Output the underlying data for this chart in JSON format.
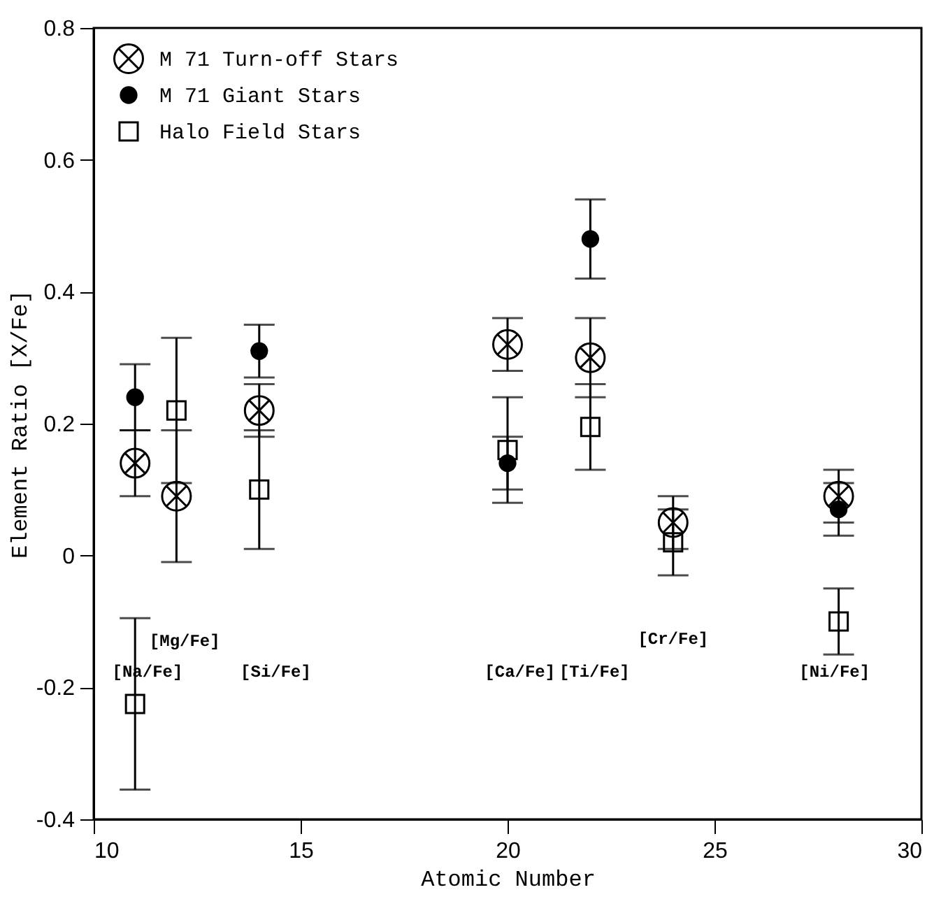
{
  "chart_data": {
    "type": "scatter",
    "xlabel": "Atomic Number",
    "ylabel": "Element Ratio [X/Fe]",
    "xlim": [
      10,
      30
    ],
    "ylim": [
      -0.4,
      0.8
    ],
    "xticks": [
      10,
      15,
      20,
      25,
      30
    ],
    "yticks": [
      {
        "value": -0.4,
        "label": "-0.4"
      },
      {
        "value": -0.2,
        "label": "-0.2"
      },
      {
        "value": 0,
        "label": "0"
      },
      {
        "value": 0.2,
        "label": "0.2"
      },
      {
        "value": 0.4,
        "label": "0.4"
      },
      {
        "value": 0.6,
        "label": "0.6"
      },
      {
        "value": 0.8,
        "label": "0.8"
      }
    ],
    "legend": "top left",
    "grid": false,
    "series": [
      {
        "name": "M 71 Turn-off Stars",
        "color": "#000000",
        "marker": "cross",
        "x": [
          11,
          12,
          14,
          20,
          22,
          24,
          28
        ],
        "values": [
          0.14,
          0.09,
          0.22,
          0.32,
          0.3,
          0.05,
          0.09
        ],
        "errors": [
          0.05,
          0.1,
          0.04,
          0.04,
          0.06,
          0.04,
          0.04
        ]
      },
      {
        "name": "M 71 Giant Stars",
        "color": "#000000",
        "marker": "circle",
        "x": [
          11,
          14,
          20,
          22,
          28
        ],
        "values": [
          0.24,
          0.31,
          0.14,
          0.48,
          0.07
        ],
        "errors": [
          0.05,
          0.04,
          0.04,
          0.06,
          0.04
        ]
      },
      {
        "name": "Halo Field Stars",
        "color": "#000000",
        "marker": "square",
        "x": [
          11,
          12,
          14,
          20,
          22,
          24,
          28
        ],
        "values": [
          -0.225,
          0.22,
          0.1,
          0.16,
          0.195,
          0.02,
          -0.1
        ],
        "errors": [
          0.13,
          0.11,
          0.09,
          0.08,
          0.065,
          0.05,
          0.05
        ]
      }
    ],
    "annotations": [
      "[Na/Fe]",
      "[Mg/Fe]",
      "[Si/Fe]",
      "[Ca/Fe]",
      "[Ti/Fe]",
      "[Cr/Fe]",
      "[Ni/Fe]"
    ]
  }
}
